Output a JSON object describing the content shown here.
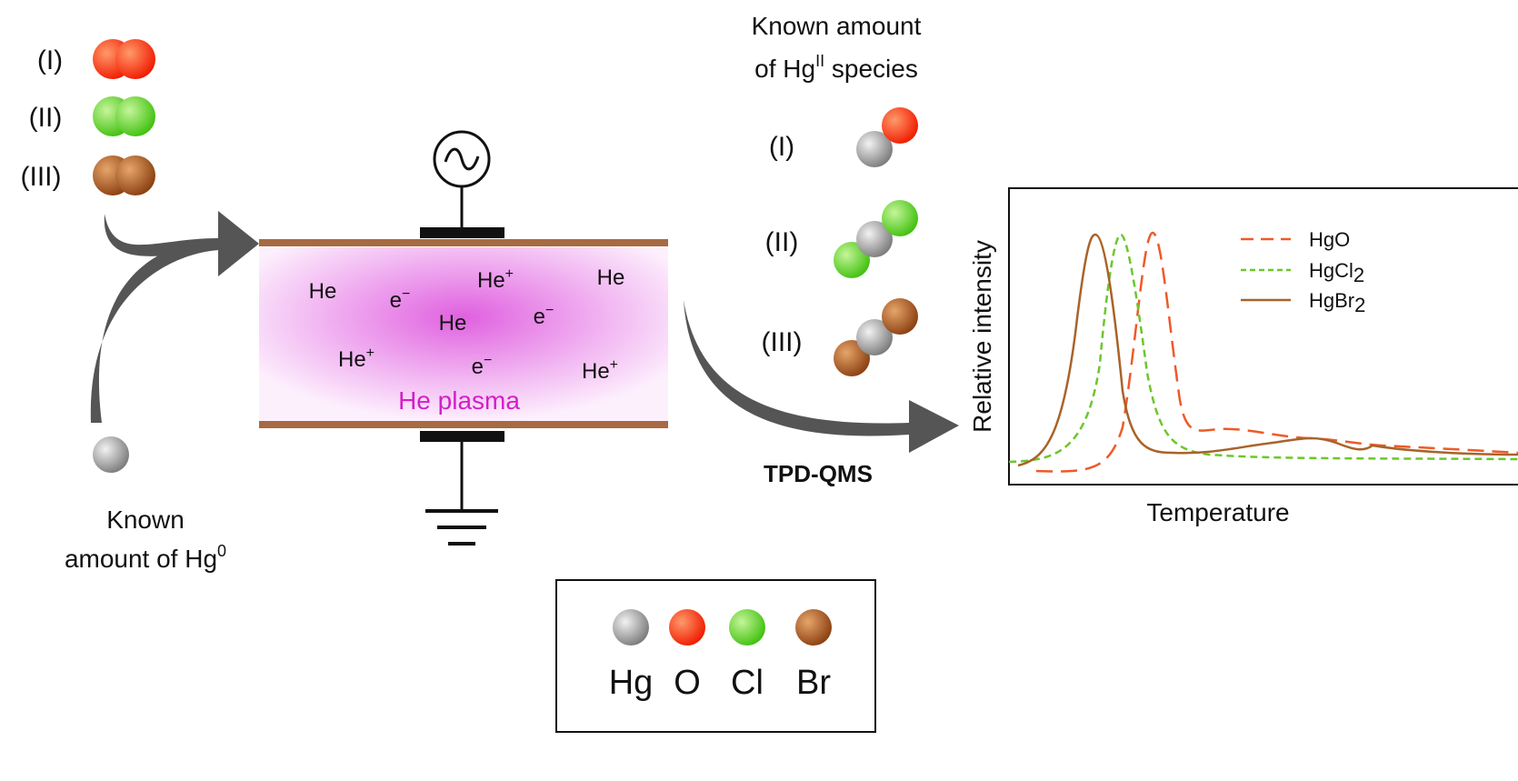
{
  "reactants": {
    "items": [
      "(I)",
      "(II)",
      "(III)"
    ],
    "hg0_label": {
      "line1": "Known",
      "line2": "amount of Hg",
      "sup": "0"
    }
  },
  "plasma": {
    "species": [
      {
        "text": "He"
      },
      {
        "text": "e",
        "sup": "−"
      },
      {
        "text": "He",
        "sup": "+"
      },
      {
        "text": "He"
      },
      {
        "text": "He"
      },
      {
        "text": "e",
        "sup": "−"
      },
      {
        "text": "He",
        "sup": "+"
      },
      {
        "text": "e",
        "sup": "−"
      },
      {
        "text": "He",
        "sup": "+"
      }
    ],
    "label": "He plasma"
  },
  "products": {
    "title_line1": "Known amount",
    "title_line2": {
      "pre": "of Hg",
      "sup": "II",
      "post": " species"
    },
    "items": [
      "(I)",
      "(II)",
      "(III)"
    ]
  },
  "method": "TPD-QMS",
  "inset": {
    "y_label": "Relative intensity",
    "x_label": "Temperature",
    "legend": [
      {
        "base": "HgO"
      },
      {
        "base": "HgCl",
        "sub": "2"
      },
      {
        "base": "HgBr",
        "sub": "2"
      }
    ]
  },
  "element_key": [
    "Hg",
    "O",
    "Cl",
    "Br"
  ]
}
